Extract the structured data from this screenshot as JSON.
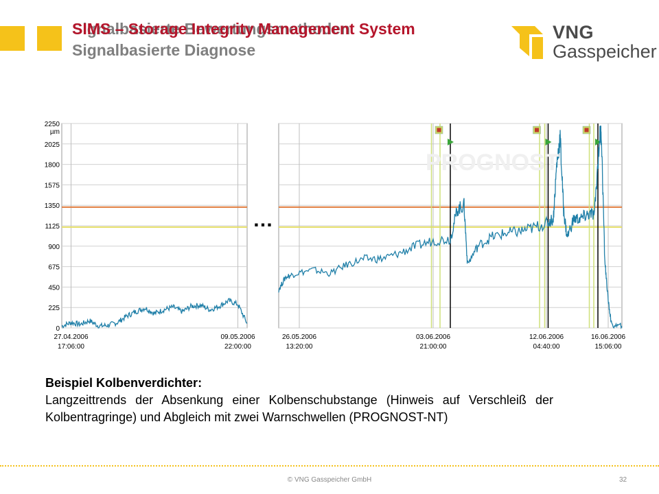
{
  "header": {
    "title_grey": "Signalbasierte Bewertungsmethoden",
    "title_red": "SIMS – Storage Integrity Management System",
    "subtitle": "Signalbasierte Diagnose"
  },
  "logo": {
    "line1": "VNG",
    "line2": "Gasspeicher"
  },
  "chart_data": {
    "type": "line",
    "title": "",
    "ylabel": "µm",
    "ylim": [
      0,
      2250
    ],
    "y_ticks": [
      "0",
      "225",
      "450",
      "675",
      "900",
      "1125",
      "1350",
      "1575",
      "1800",
      "2025",
      "2250"
    ],
    "y_unit": "µm",
    "grid": true,
    "thresholds": [
      {
        "value": 1330,
        "color": "#e07b3c"
      },
      {
        "value": 1110,
        "color": "#e6df6a"
      }
    ],
    "gap_marker": "…",
    "panels": [
      {
        "x_ticks": [
          {
            "date": "27.04.2006",
            "time": "17:06:00"
          },
          {
            "date": "09.05.2006",
            "time": "22:00:00"
          }
        ],
        "series": [
          {
            "color": "#1f7fa8",
            "x": [
              0,
              0.05,
              0.1,
              0.15,
              0.2,
              0.25,
              0.3,
              0.35,
              0.4,
              0.45,
              0.5,
              0.55,
              0.6,
              0.65,
              0.7,
              0.75,
              0.8,
              0.85,
              0.9,
              0.95,
              1.0
            ],
            "values": [
              20,
              60,
              40,
              80,
              20,
              30,
              60,
              130,
              180,
              220,
              160,
              200,
              230,
              180,
              240,
              250,
              200,
              240,
              300,
              260,
              50
            ]
          }
        ]
      },
      {
        "x_ticks": [
          {
            "date": "26.05.2006",
            "time": "13:20:00"
          },
          {
            "date": "03.06.2006",
            "time": "21:00:00"
          },
          {
            "date": "12.06.2006",
            "time": "04:40:00"
          },
          {
            "date": "16.06.2006",
            "time": "15:06:00"
          }
        ],
        "series": [
          {
            "color": "#1f7fa8",
            "x": [
              0,
              0.02,
              0.05,
              0.1,
              0.15,
              0.2,
              0.25,
              0.3,
              0.35,
              0.4,
              0.45,
              0.5,
              0.52,
              0.54,
              0.55,
              0.58,
              0.62,
              0.66,
              0.7,
              0.74,
              0.78,
              0.8,
              0.81,
              0.82,
              0.83,
              0.84,
              0.86,
              0.88,
              0.9,
              0.92,
              0.935,
              0.94,
              0.95,
              0.96,
              0.97,
              1.0
            ],
            "values": [
              420,
              560,
              600,
              640,
              600,
              700,
              760,
              760,
              820,
              900,
              960,
              980,
              1300,
              1350,
              700,
              900,
              1000,
              1040,
              1060,
              1100,
              1150,
              1200,
              1800,
              2100,
              1300,
              1000,
              1200,
              1200,
              1250,
              1250,
              2100,
              2150,
              750,
              300,
              30,
              20
            ]
          }
        ],
        "alarm_times": [
          0.5,
          0.785,
          0.93
        ],
        "warn_times": [
          0.445,
          0.47,
          0.76,
          0.775,
          0.905,
          0.918
        ]
      }
    ]
  },
  "caption": {
    "heading": "Beispiel Kolbenverdichter:",
    "body": "Langzeittrends der Absenkung einer Kolbenschubstange (Hinweis auf Verschleiß der Kolbentragringe) und Abgleich mit zwei Warnschwellen (PROGNOST-NT)"
  },
  "footer": {
    "copyright": "© VNG Gasspeicher GmbH",
    "page": "32"
  },
  "colors": {
    "accent_yellow": "#f5c21a",
    "title_red": "#b5152b",
    "signal_blue": "#1f7fa8"
  }
}
